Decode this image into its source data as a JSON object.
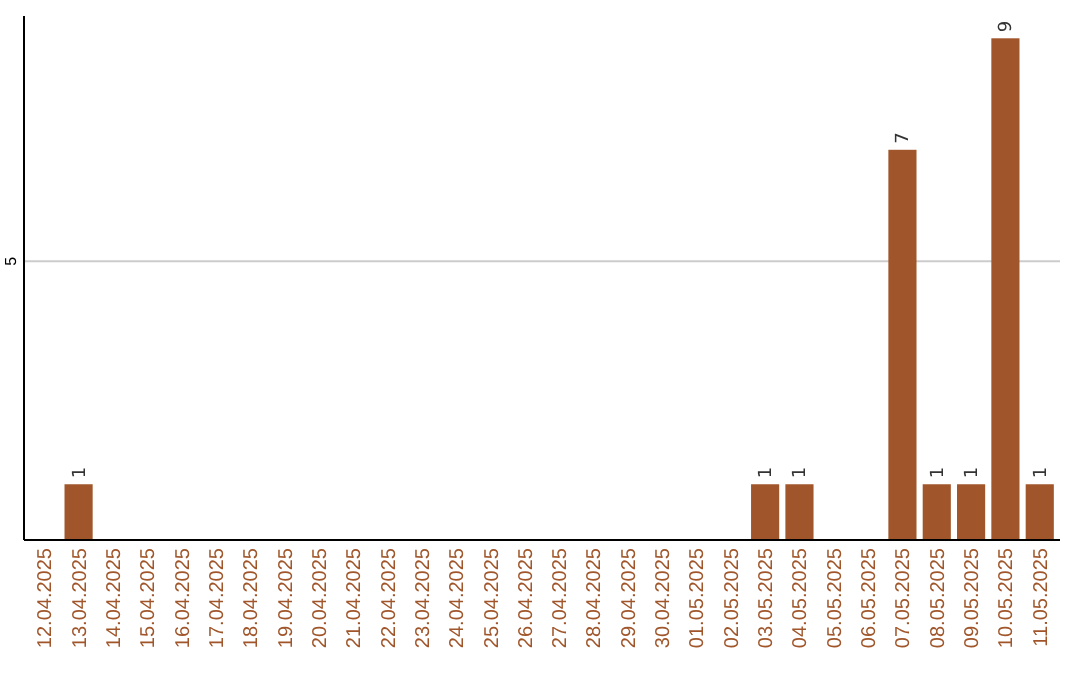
{
  "chart_data": {
    "type": "bar",
    "categories": [
      "12.04.2025",
      "13.04.2025",
      "14.04.2025",
      "15.04.2025",
      "16.04.2025",
      "17.04.2025",
      "18.04.2025",
      "19.04.2025",
      "20.04.2025",
      "21.04.2025",
      "22.04.2025",
      "23.04.2025",
      "24.04.2025",
      "25.04.2025",
      "26.04.2025",
      "27.04.2025",
      "28.04.2025",
      "29.04.2025",
      "30.04.2025",
      "01.05.2025",
      "02.05.2025",
      "03.05.2025",
      "04.05.2025",
      "05.05.2025",
      "06.05.2025",
      "07.05.2025",
      "08.05.2025",
      "09.05.2025",
      "10.05.2025",
      "11.05.2025"
    ],
    "values": [
      0,
      1,
      0,
      0,
      0,
      0,
      0,
      0,
      0,
      0,
      0,
      0,
      0,
      0,
      0,
      0,
      0,
      0,
      0,
      0,
      0,
      1,
      1,
      0,
      0,
      7,
      1,
      1,
      9,
      1
    ],
    "value_labels": [
      null,
      "1",
      null,
      null,
      null,
      null,
      null,
      null,
      null,
      null,
      null,
      null,
      null,
      null,
      null,
      null,
      null,
      null,
      null,
      null,
      null,
      "1",
      "1",
      null,
      null,
      "7",
      "1",
      "1",
      "9",
      "1"
    ],
    "color": "#a0562a",
    "ylim": [
      0,
      9.4
    ],
    "yticks": [
      5
    ],
    "grid": "y"
  }
}
